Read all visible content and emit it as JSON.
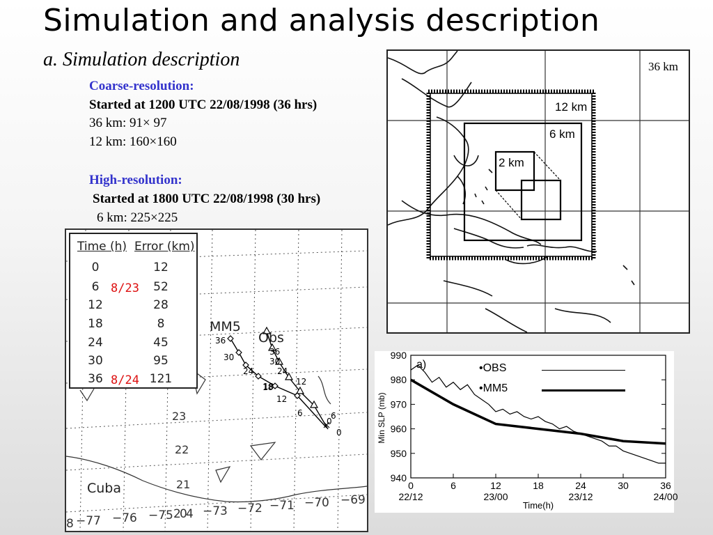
{
  "slide": {
    "title": "Simulation and analysis description",
    "subtitle": "a. Simulation description"
  },
  "description": {
    "coarse_heading": "Coarse-resolution:",
    "coarse_start": "Started at 1200 UTC 22/08/1998 (36 hrs)",
    "coarse_36km": "36 km:   91× 97",
    "coarse_12km": "12 km: 160×160",
    "high_heading": "High-resolution:",
    "high_start": "Started at 1800 UTC 22/08/1998 (30 hrs)",
    "high_6km": "6 km: 225×225"
  },
  "grid_map": {
    "labels": {
      "d36": "36 km",
      "d12": "12 km",
      "d6": "6 km",
      "d2": "2 km"
    }
  },
  "track_map": {
    "table": {
      "col_time": "Time (h)",
      "col_error": "Error (km)",
      "rows": [
        {
          "time": "0",
          "error": "12"
        },
        {
          "time": "6",
          "error": "52"
        },
        {
          "time": "12",
          "error": "28"
        },
        {
          "time": "18",
          "error": "8"
        },
        {
          "time": "24",
          "error": "45"
        },
        {
          "time": "30",
          "error": "95"
        },
        {
          "time": "36",
          "error": "121"
        }
      ],
      "date1": "8/23",
      "date2": "8/24"
    },
    "label_mm5": "MM5",
    "label_obs": "Obs",
    "label_cuba": "Cuba",
    "lat_labels": [
      "23",
      "22",
      "21"
    ],
    "lon_labels": [
      "8",
      "−77",
      "−76",
      "−75",
      "2",
      "0",
      "4",
      "−73",
      "−72",
      "−71",
      "−70",
      "−69"
    ],
    "mm5_hours": [
      "36",
      "30",
      "24",
      "18",
      "12",
      "6",
      "0"
    ],
    "obs_hours": [
      "36",
      "30",
      "24",
      "18",
      "12",
      "6",
      "0"
    ]
  },
  "chart_data": {
    "type": "line",
    "panel_label": "a)",
    "xlabel": "Time(h)",
    "ylabel": "Min SLP (mb)",
    "xlim": [
      0,
      36
    ],
    "ylim": [
      940,
      990
    ],
    "x_ticks": [
      0,
      6,
      12,
      18,
      24,
      30,
      36
    ],
    "y_ticks": [
      940,
      950,
      960,
      970,
      980,
      990
    ],
    "date_ticks": [
      {
        "x": 0,
        "label": "22/12"
      },
      {
        "x": 12,
        "label": "23/00"
      },
      {
        "x": 24,
        "label": "23/12"
      },
      {
        "x": 36,
        "label": "24/00"
      }
    ],
    "series": [
      {
        "name": "•OBS",
        "x": [
          0,
          1,
          2,
          3,
          4,
          5,
          6,
          7,
          8,
          9,
          10,
          11,
          12,
          13,
          14,
          15,
          16,
          17,
          18,
          19,
          20,
          21,
          22,
          23,
          24,
          25,
          26,
          27,
          28,
          29,
          30,
          31,
          32,
          33,
          34,
          35,
          36
        ],
        "values": [
          984,
          986,
          983,
          979,
          981,
          977,
          979,
          976,
          978,
          974,
          972,
          970,
          967,
          968,
          966,
          967,
          965,
          964,
          965,
          963,
          962,
          960,
          961,
          959,
          958,
          957,
          956,
          955,
          953,
          953,
          951,
          950,
          949,
          948,
          947,
          946,
          946
        ]
      },
      {
        "name": "•MM5",
        "x": [
          0,
          3,
          6,
          9,
          12,
          18,
          24,
          30,
          36
        ],
        "values": [
          980,
          975,
          970,
          966,
          962,
          960,
          958,
          955,
          954
        ]
      }
    ]
  }
}
